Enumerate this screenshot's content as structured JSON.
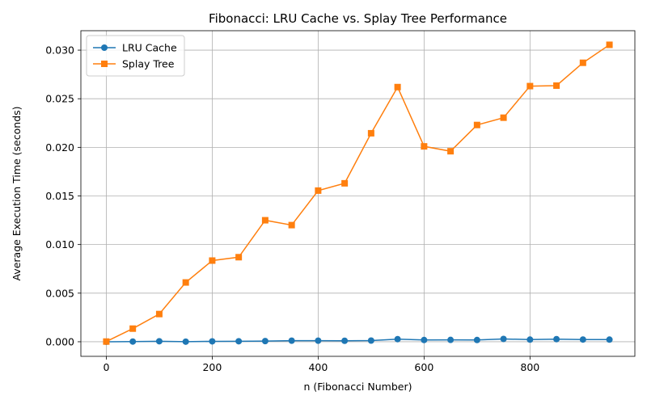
{
  "chart_data": {
    "type": "line",
    "title": "Fibonacci: LRU Cache vs. Splay Tree Performance",
    "xlabel": "n (Fibonacci Number)",
    "ylabel": "Average Execution Time (seconds)",
    "xlim": [
      -48,
      998
    ],
    "ylim": [
      -0.0015,
      0.032
    ],
    "xticks": [
      0,
      200,
      400,
      600,
      800
    ],
    "yticks": [
      0.0,
      0.005,
      0.01,
      0.015,
      0.02,
      0.025,
      0.03
    ],
    "xtick_labels": [
      "0",
      "200",
      "400",
      "600",
      "800"
    ],
    "ytick_labels": [
      "0.000",
      "0.005",
      "0.010",
      "0.015",
      "0.020",
      "0.025",
      "0.030"
    ],
    "grid": true,
    "legend_position": "top-left",
    "x": [
      0,
      50,
      100,
      150,
      200,
      250,
      300,
      350,
      400,
      450,
      500,
      550,
      600,
      650,
      700,
      750,
      800,
      850,
      900,
      950
    ],
    "series": [
      {
        "name": "LRU Cache",
        "color": "#1f77b4",
        "marker": "circle",
        "values": [
          0.0,
          2e-05,
          5e-05,
          1e-05,
          4e-05,
          5e-05,
          7e-05,
          0.00011,
          0.00011,
          0.0001,
          0.00012,
          0.00027,
          0.00018,
          0.00019,
          0.00018,
          0.00029,
          0.00022,
          0.00027,
          0.00023,
          0.00022
        ]
      },
      {
        "name": "Splay Tree",
        "color": "#ff7f0e",
        "marker": "square",
        "values": [
          2e-05,
          0.00135,
          0.00285,
          0.0061,
          0.00835,
          0.0087,
          0.0125,
          0.012,
          0.01555,
          0.0163,
          0.02145,
          0.0262,
          0.0201,
          0.0196,
          0.0223,
          0.02305,
          0.0263,
          0.02635,
          0.0287,
          0.03055
        ]
      }
    ]
  }
}
